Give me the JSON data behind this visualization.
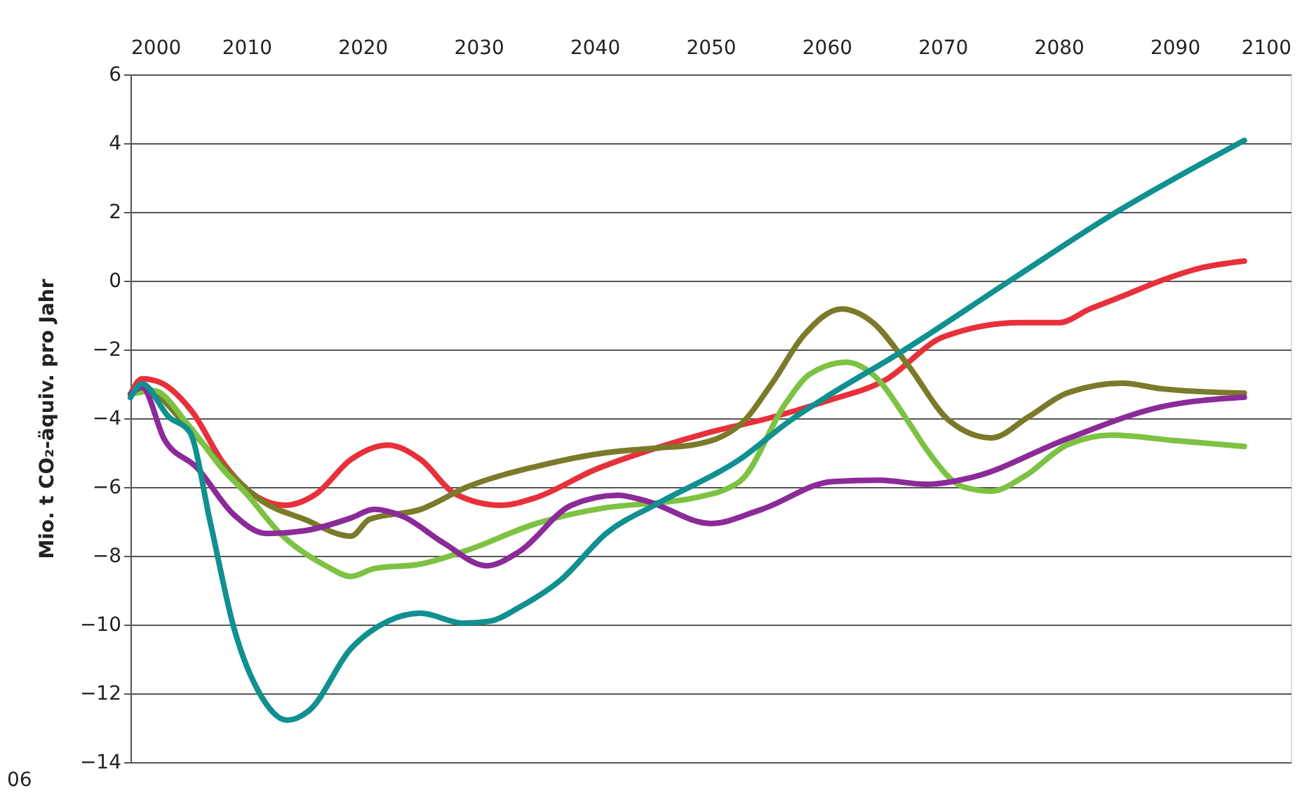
{
  "chart_data": {
    "type": "line",
    "ylabel": "Mio. t CO₂-äquiv. pro Jahr",
    "annotations": [
      "06"
    ],
    "xlim": [
      2000,
      2100
    ],
    "xticks": [
      2000,
      2010,
      2020,
      2030,
      2040,
      2050,
      2060,
      2070,
      2080,
      2090,
      2100
    ],
    "ylim": [
      -14,
      6
    ],
    "yticks": [
      -14,
      -12,
      -10,
      -8,
      -6,
      -4,
      -2,
      0,
      2,
      4,
      6
    ],
    "grid": "y",
    "marker": "none",
    "line_style": "solid",
    "series": [
      {
        "color": "#e8303a",
        "x": [
          2000,
          2001,
          2002.5,
          2005.3,
          2008,
          2011,
          2013.3,
          2016,
          2019,
          2022.2,
          2025,
          2028,
          2031.9,
          2035,
          2040,
          2045,
          2050,
          2055,
          2060,
          2065,
          2070.1,
          2076.7,
          2080,
          2082.7,
          2085.5,
          2088.8,
          2092,
          2096
        ],
        "values": [
          -3.3,
          -2.85,
          -2.95,
          -3.8,
          -5.3,
          -6.3,
          -6.53,
          -6.2,
          -5.2,
          -4.78,
          -5.2,
          -6.2,
          -6.53,
          -6.3,
          -5.5,
          -4.9,
          -4.4,
          -4.0,
          -3.5,
          -2.9,
          -1.63,
          -1.22,
          -1.22,
          -0.82,
          -0.45,
          0.0,
          0.35,
          0.57
        ]
      },
      {
        "color": "#7a7a2a",
        "x": [
          2000,
          2001,
          2004.8,
          2008,
          2011.3,
          2015,
          2019,
          2020.6,
          2025,
          2029,
          2035,
          2041,
          2045.6,
          2048.4,
          2052.5,
          2055.3,
          2058,
          2061.3,
          2064,
          2067,
          2070.6,
          2074.2,
          2077.4,
          2080.7,
          2085.5,
          2088.8,
          2096
        ],
        "values": [
          -3.3,
          -3.1,
          -4.2,
          -5.4,
          -6.4,
          -6.94,
          -7.43,
          -6.94,
          -6.65,
          -6.0,
          -5.4,
          -5.0,
          -4.86,
          -4.78,
          -4.2,
          -2.98,
          -1.6,
          -0.82,
          -1.22,
          -2.45,
          -4.08,
          -4.57,
          -3.96,
          -3.27,
          -2.98,
          -3.14,
          -3.27
        ]
      },
      {
        "color": "#7dc242",
        "x": [
          2000,
          2002,
          2005,
          2008,
          2010,
          2012.9,
          2016.9,
          2019,
          2021,
          2025,
          2029,
          2035,
          2041,
          2045.6,
          2048.4,
          2052.5,
          2056.5,
          2058.5,
          2061.7,
          2064,
          2067,
          2068.6,
          2071.8,
          2074.2,
          2077,
          2080.7,
          2084.6,
          2090,
          2096
        ],
        "values": [
          -3.3,
          -3.2,
          -4.2,
          -5.5,
          -6.2,
          -7.35,
          -8.3,
          -8.6,
          -8.37,
          -8.24,
          -7.84,
          -7.06,
          -6.6,
          -6.45,
          -6.33,
          -5.84,
          -3.55,
          -2.73,
          -2.37,
          -2.73,
          -4.08,
          -4.9,
          -6.0,
          -6.12,
          -5.7,
          -4.78,
          -4.49,
          -4.65,
          -4.82
        ]
      },
      {
        "color": "#8b2a98",
        "x": [
          2000,
          2001,
          2002.9,
          2005.7,
          2008.9,
          2011.7,
          2015,
          2019,
          2021,
          2023.5,
          2027,
          2030.7,
          2033.5,
          2038,
          2042,
          2044.4,
          2050,
          2054.4,
          2060.5,
          2064.5,
          2068.6,
          2072.6,
          2080.7,
          2088.8,
          2096
        ],
        "values": [
          -3.3,
          -3.1,
          -4.6,
          -5.43,
          -6.8,
          -7.35,
          -7.27,
          -6.9,
          -6.65,
          -6.86,
          -7.63,
          -8.29,
          -7.88,
          -6.53,
          -6.24,
          -6.4,
          -7.06,
          -6.65,
          -5.84,
          -5.8,
          -5.92,
          -5.71,
          -4.6,
          -3.67,
          -3.39
        ]
      },
      {
        "color": "#109090",
        "x": [
          2000,
          2001,
          2003.3,
          2005.1,
          2006.9,
          2008.9,
          2011.3,
          2013.5,
          2015.4,
          2019,
          2022.2,
          2025,
          2028.7,
          2031,
          2033.5,
          2037.1,
          2041,
          2045.6,
          2052.5,
          2056.8,
          2060.5,
          2066,
          2075.8,
          2084.6,
          2096
        ],
        "values": [
          -3.4,
          -3.0,
          -3.96,
          -4.4,
          -7.06,
          -10.08,
          -12.1,
          -12.78,
          -12.5,
          -10.7,
          -9.9,
          -9.67,
          -9.96,
          -9.9,
          -9.5,
          -8.7,
          -7.35,
          -6.45,
          -5.2,
          -4.08,
          -3.27,
          -2.16,
          0.0,
          1.92,
          4.08
        ]
      }
    ]
  }
}
